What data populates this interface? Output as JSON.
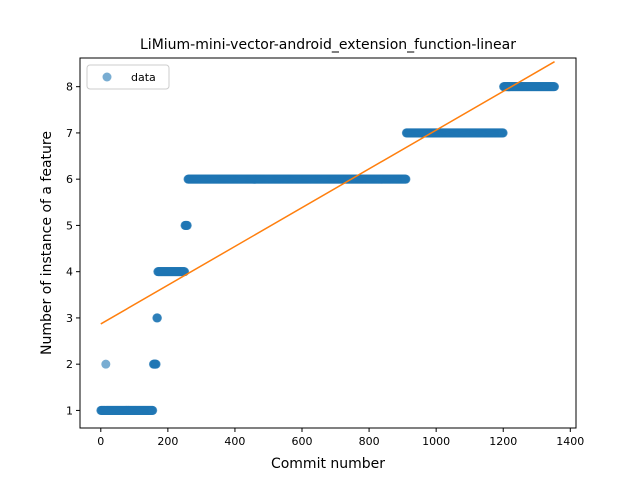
{
  "chart_data": {
    "type": "scatter",
    "title": "LiMium-mini-vector-android_extension_function-linear",
    "xlabel": "Commit number",
    "ylabel": "Number of instance of a feature",
    "xlim": [
      -62,
      1417
    ],
    "ylim": [
      0.62,
      8.62
    ],
    "xticks": [
      0,
      200,
      400,
      600,
      800,
      1000,
      1200,
      1400
    ],
    "xtick_labels": [
      "0",
      "200",
      "400",
      "600",
      "800",
      "1000",
      "1200",
      "1400"
    ],
    "yticks": [
      1,
      2,
      3,
      4,
      5,
      6,
      7,
      8
    ],
    "ytick_labels": [
      "1",
      "2",
      "3",
      "4",
      "5",
      "6",
      "7",
      "8"
    ],
    "grid": false,
    "legend": {
      "placement": "top-left",
      "entries": [
        "data"
      ]
    },
    "series": [
      {
        "name": "data",
        "kind": "scatter",
        "color": "#1f77b4",
        "alpha": 0.6,
        "segments": [
          {
            "x_start": 0,
            "x_end": 14,
            "y": 1
          },
          {
            "x_start": 15,
            "x_end": 15,
            "y": 2
          },
          {
            "x_start": 16,
            "x_end": 155,
            "y": 1
          },
          {
            "x_start": 157,
            "x_end": 165,
            "y": 2
          },
          {
            "x_start": 167,
            "x_end": 169,
            "y": 3
          },
          {
            "x_start": 170,
            "x_end": 250,
            "y": 4
          },
          {
            "x_start": 251,
            "x_end": 258,
            "y": 5
          },
          {
            "x_start": 260,
            "x_end": 910,
            "y": 6
          },
          {
            "x_start": 911,
            "x_end": 1200,
            "y": 7
          },
          {
            "x_start": 1201,
            "x_end": 1353,
            "y": 8
          }
        ]
      },
      {
        "name": "fit",
        "kind": "line",
        "color": "#ff7f0e",
        "x": [
          0,
          1353
        ],
        "y": [
          2.87,
          8.54
        ]
      }
    ]
  }
}
